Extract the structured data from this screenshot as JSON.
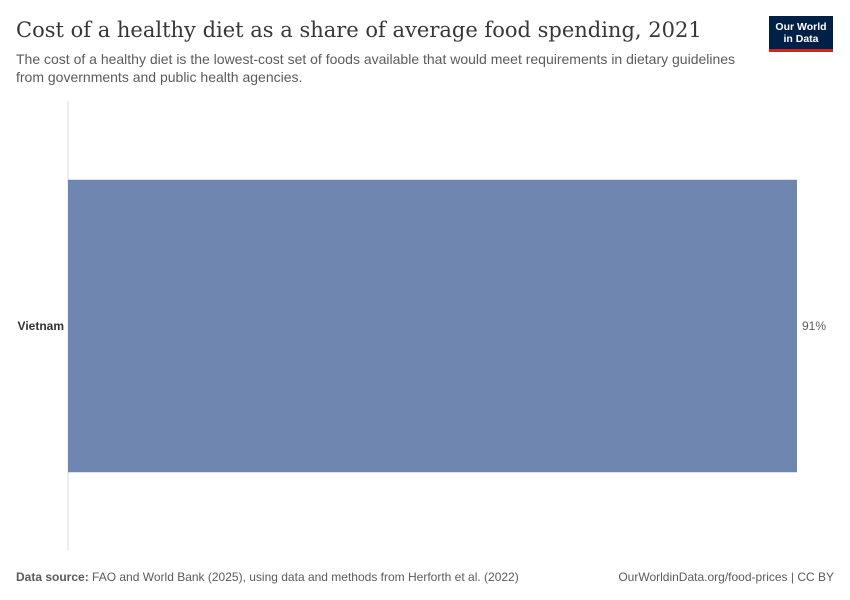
{
  "header": {
    "title": "Cost of a healthy diet as a share of average food spending, 2021",
    "subtitle": "The cost of a healthy diet is the lowest-cost set of foods available that would meet requirements in dietary guidelines from governments and public health agencies."
  },
  "logo": {
    "line1": "Our World",
    "line2": "in Data"
  },
  "footer": {
    "source_label": "Data source:",
    "source_text": "FAO and World Bank (2025), using data and methods from Herforth et al. (2022)",
    "url_license": "OurWorldinData.org/food-prices | CC BY"
  },
  "chart_data": {
    "type": "bar",
    "orientation": "horizontal",
    "title": "Cost of a healthy diet as a share of average food spending, 2021",
    "categories": [
      "Vietnam"
    ],
    "values": [
      91
    ],
    "value_labels": [
      "91%"
    ],
    "unit": "%",
    "xlim": [
      0,
      91
    ],
    "grid": false,
    "legend": "none",
    "bar_color": "#6f87b0"
  }
}
